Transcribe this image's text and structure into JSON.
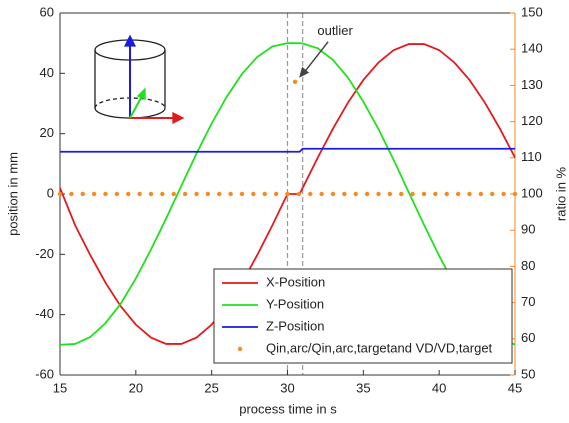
{
  "chart_data": {
    "type": "line",
    "xlabel": "process time in s",
    "ylabel": "position in mm",
    "y2label": "ratio in %",
    "xlim": [
      15,
      45
    ],
    "xticks": [
      15,
      20,
      25,
      30,
      35,
      40,
      45
    ],
    "ylim": [
      -60,
      60
    ],
    "yticks": [
      -60,
      -40,
      -20,
      0,
      20,
      40,
      60
    ],
    "y2lim": [
      50,
      150
    ],
    "y2ticks": [
      50,
      60,
      70,
      80,
      90,
      100,
      110,
      120,
      130,
      140,
      150
    ],
    "y2color": "#f58a1f",
    "legend": "lower right",
    "vlines": [
      30,
      31
    ],
    "annotation": {
      "text": "outlier",
      "x": 30.5,
      "y": 131
    },
    "x": [
      15,
      16,
      17,
      18,
      19,
      20,
      21,
      22,
      23,
      24,
      25,
      26,
      27,
      28,
      29,
      30,
      30.8,
      31,
      32,
      33,
      34,
      35,
      36,
      37,
      38,
      39,
      40,
      41,
      42,
      43,
      44,
      45
    ],
    "series": [
      {
        "name": "X-Position",
        "color": "#e41a1c",
        "values": [
          2,
          -10.4,
          -20.3,
          -29.4,
          -37.2,
          -43.3,
          -47.6,
          -49.7,
          -49.7,
          -47.6,
          -43.3,
          -37.2,
          -29.4,
          -20.3,
          -10.4,
          0,
          0,
          2,
          12.1,
          21.7,
          30.4,
          37.8,
          43.6,
          47.7,
          49.7,
          49.7,
          47.7,
          43.6,
          37.8,
          30.4,
          21.7,
          12.1
        ]
      },
      {
        "name": "Y-Position",
        "color": "#22e01e",
        "values": [
          -50,
          -49.7,
          -47.4,
          -42.8,
          -36.4,
          -28,
          -18.4,
          -8.1,
          2.7,
          13.4,
          23.4,
          32.3,
          39.8,
          45.4,
          48.9,
          50,
          50,
          49.9,
          48.3,
          44.4,
          38.5,
          30.6,
          21.5,
          11.3,
          0.5,
          -10.2,
          -20.5,
          -29.9,
          -37.9,
          -44,
          -48.1,
          -49.9
        ]
      },
      {
        "name": "Z-Position",
        "color": "#1a1ae0",
        "values": [
          14,
          14,
          14,
          14,
          14,
          14,
          14,
          14,
          14,
          14,
          14,
          14,
          14,
          14,
          14,
          14,
          14,
          15,
          15,
          15,
          15,
          15,
          15,
          15,
          15,
          15,
          15,
          15,
          15,
          15,
          15,
          15
        ]
      },
      {
        "name": "Qin,arc/Qin,arc,targetand VD/VD,target",
        "color": "#f58a1f",
        "type": "scatter",
        "axis": "y2",
        "x": [
          15,
          15.75,
          16.5,
          17.25,
          18,
          18.75,
          19.5,
          20.25,
          21,
          21.75,
          22.5,
          23.25,
          24,
          24.75,
          25.5,
          26.25,
          27,
          27.75,
          28.5,
          29.25,
          30,
          30.5,
          30.75,
          31.5,
          32.25,
          33,
          33.75,
          34.5,
          35.25,
          36,
          36.75,
          37.5,
          38.25,
          39,
          39.75,
          40.5,
          41.25,
          42,
          42.75,
          43.5,
          44.25,
          45
        ],
        "values": [
          100,
          100,
          100,
          100,
          100,
          100,
          100,
          100,
          100,
          100,
          100,
          100,
          100,
          100,
          100,
          100,
          100,
          100,
          100,
          100,
          100,
          131,
          100,
          100,
          100,
          100,
          100,
          100,
          100,
          100,
          100,
          100,
          100,
          100,
          100,
          100,
          100,
          100,
          100,
          100,
          100,
          100
        ]
      }
    ]
  }
}
